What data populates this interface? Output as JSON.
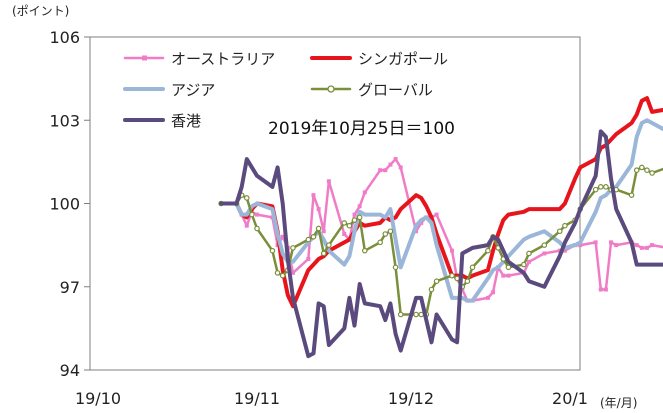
{
  "chart_data": {
    "type": "line",
    "title": "",
    "y_unit_label": "(ポイント)",
    "x_unit_label": "(年/月)",
    "annotation": "2019年10月25日＝100",
    "ylim": [
      94,
      106
    ],
    "y_ticks": [
      94,
      97,
      100,
      103,
      106
    ],
    "y_tick_labels": [
      "94",
      "97",
      "100",
      "103",
      "106"
    ],
    "x_ticks": [
      "19/10",
      "19/11",
      "19/12",
      "20/1"
    ],
    "x_domain": [
      "2019-10-25",
      "2020-01-21"
    ],
    "x_tick_dates": [
      "2019-10-01",
      "2019-11-01",
      "2019-12-01",
      "2020-01-01"
    ],
    "legend_position": "top",
    "grid": false,
    "series": [
      {
        "name": "オーストラリア",
        "color": "#f07cc8",
        "marker": "square",
        "width": 2.5,
        "x": [
          "2019-10-25",
          "2019-10-28",
          "2019-10-29",
          "2019-10-30",
          "2019-10-31",
          "2019-11-01",
          "2019-11-04",
          "2019-11-05",
          "2019-11-06",
          "2019-11-07",
          "2019-11-08",
          "2019-11-11",
          "2019-11-12",
          "2019-11-13",
          "2019-11-14",
          "2019-11-15",
          "2019-11-18",
          "2019-11-19",
          "2019-11-20",
          "2019-11-21",
          "2019-11-22",
          "2019-11-25",
          "2019-11-26",
          "2019-11-27",
          "2019-11-28",
          "2019-11-29",
          "2019-12-02",
          "2019-12-03",
          "2019-12-04",
          "2019-12-05",
          "2019-12-06",
          "2019-12-09",
          "2019-12-10",
          "2019-12-11",
          "2019-12-12",
          "2019-12-13",
          "2019-12-16",
          "2019-12-17",
          "2019-12-18",
          "2019-12-19",
          "2019-12-20",
          "2019-12-23",
          "2019-12-24",
          "2019-12-27",
          "2019-12-30",
          "2019-12-31",
          "2020-01-02",
          "2020-01-03",
          "2020-01-06",
          "2020-01-07",
          "2020-01-08",
          "2020-01-09",
          "2020-01-10",
          "2020-01-13",
          "2020-01-14",
          "2020-01-15",
          "2020-01-16",
          "2020-01-17",
          "2020-01-20",
          "2020-01-21"
        ],
        "y": [
          100.0,
          100.0,
          99.6,
          99.2,
          99.7,
          99.6,
          99.5,
          98.5,
          98.8,
          98.4,
          97.5,
          98.0,
          100.3,
          99.8,
          99.0,
          100.8,
          98.9,
          98.7,
          99.6,
          99.9,
          100.4,
          101.2,
          101.2,
          101.4,
          101.6,
          101.3,
          99.0,
          99.3,
          99.5,
          99.5,
          99.6,
          98.3,
          97.3,
          96.9,
          96.5,
          96.5,
          96.6,
          96.8,
          97.7,
          97.4,
          97.4,
          97.5,
          97.9,
          98.2,
          98.3,
          98.3,
          98.5,
          98.5,
          98.6,
          96.9,
          96.9,
          98.6,
          98.5,
          98.6,
          98.5,
          98.4,
          98.4,
          98.5,
          98.4,
          98.3
        ]
      },
      {
        "name": "シンガポール",
        "color": "#e8141b",
        "marker": "none",
        "width": 4,
        "x": [
          "2019-10-25",
          "2019-10-28",
          "2019-10-29",
          "2019-10-30",
          "2019-10-31",
          "2019-11-01",
          "2019-11-04",
          "2019-11-05",
          "2019-11-06",
          "2019-11-07",
          "2019-11-08",
          "2019-11-11",
          "2019-11-12",
          "2019-11-13",
          "2019-11-14",
          "2019-11-15",
          "2019-11-18",
          "2019-11-19",
          "2019-11-20",
          "2019-11-21",
          "2019-11-22",
          "2019-11-25",
          "2019-11-26",
          "2019-11-27",
          "2019-11-28",
          "2019-11-29",
          "2019-12-02",
          "2019-12-03",
          "2019-12-04",
          "2019-12-05",
          "2019-12-06",
          "2019-12-09",
          "2019-12-10",
          "2019-12-11",
          "2019-12-12",
          "2019-12-13",
          "2019-12-16",
          "2019-12-17",
          "2019-12-18",
          "2019-12-19",
          "2019-12-20",
          "2019-12-23",
          "2019-12-24",
          "2019-12-27",
          "2019-12-30",
          "2019-12-31",
          "2020-01-02",
          "2020-01-03",
          "2020-01-06",
          "2020-01-07",
          "2020-01-08",
          "2020-01-09",
          "2020-01-10",
          "2020-01-13",
          "2020-01-14",
          "2020-01-15",
          "2020-01-16",
          "2020-01-17",
          "2020-01-20",
          "2020-01-21"
        ],
        "y": [
          100.0,
          100.0,
          99.6,
          99.5,
          99.8,
          100.0,
          99.9,
          99.0,
          97.6,
          96.7,
          96.3,
          97.6,
          97.8,
          98.0,
          98.1,
          98.3,
          98.6,
          98.7,
          99.0,
          99.3,
          99.2,
          99.3,
          99.5,
          99.4,
          99.5,
          99.8,
          100.3,
          100.2,
          99.9,
          99.5,
          98.9,
          97.4,
          97.4,
          97.4,
          97.3,
          97.4,
          97.6,
          98.3,
          98.9,
          99.4,
          99.6,
          99.7,
          99.8,
          99.8,
          99.8,
          100.0,
          100.9,
          101.3,
          101.6,
          102.0,
          102.1,
          102.3,
          102.5,
          102.9,
          103.2,
          103.7,
          103.8,
          103.3,
          103.4,
          103.6
        ]
      },
      {
        "name": "アジア",
        "color": "#9ab6d8",
        "marker": "none",
        "width": 4,
        "x": [
          "2019-10-25",
          "2019-10-28",
          "2019-10-29",
          "2019-10-30",
          "2019-10-31",
          "2019-11-01",
          "2019-11-04",
          "2019-11-05",
          "2019-11-06",
          "2019-11-07",
          "2019-11-08",
          "2019-11-11",
          "2019-11-12",
          "2019-11-13",
          "2019-11-14",
          "2019-11-15",
          "2019-11-18",
          "2019-11-19",
          "2019-11-20",
          "2019-11-21",
          "2019-11-22",
          "2019-11-25",
          "2019-11-26",
          "2019-11-27",
          "2019-11-28",
          "2019-11-29",
          "2019-12-02",
          "2019-12-03",
          "2019-12-04",
          "2019-12-05",
          "2019-12-06",
          "2019-12-09",
          "2019-12-10",
          "2019-12-11",
          "2019-12-12",
          "2019-12-13",
          "2019-12-16",
          "2019-12-17",
          "2019-12-18",
          "2019-12-19",
          "2019-12-20",
          "2019-12-23",
          "2019-12-24",
          "2019-12-27",
          "2019-12-30",
          "2019-12-31",
          "2020-01-02",
          "2020-01-03",
          "2020-01-06",
          "2020-01-07",
          "2020-01-08",
          "2020-01-09",
          "2020-01-10",
          "2020-01-13",
          "2020-01-14",
          "2020-01-15",
          "2020-01-16",
          "2020-01-17",
          "2020-01-20",
          "2020-01-21"
        ],
        "y": [
          100.0,
          100.0,
          99.6,
          99.6,
          99.9,
          100.0,
          99.8,
          98.9,
          98.2,
          97.9,
          97.9,
          98.6,
          98.8,
          99.0,
          98.7,
          98.3,
          97.8,
          98.1,
          99.0,
          99.7,
          99.6,
          99.6,
          99.5,
          99.8,
          98.7,
          97.7,
          99.2,
          99.4,
          99.5,
          99.3,
          98.5,
          96.6,
          96.6,
          96.6,
          96.5,
          96.5,
          97.3,
          97.6,
          97.7,
          97.9,
          98.1,
          98.7,
          98.8,
          99.0,
          98.6,
          98.4,
          98.5,
          98.6,
          99.7,
          100.2,
          100.3,
          100.5,
          100.6,
          101.4,
          102.4,
          102.9,
          103.0,
          102.9,
          102.6,
          102.8
        ]
      },
      {
        "name": "グローバル",
        "color": "#7a8f3a",
        "marker": "circle",
        "width": 2.5,
        "x": [
          "2019-10-25",
          "2019-10-28",
          "2019-10-29",
          "2019-10-30",
          "2019-10-31",
          "2019-11-01",
          "2019-11-04",
          "2019-11-05",
          "2019-11-06",
          "2019-11-07",
          "2019-11-08",
          "2019-11-11",
          "2019-11-12",
          "2019-11-13",
          "2019-11-14",
          "2019-11-15",
          "2019-11-18",
          "2019-11-19",
          "2019-11-20",
          "2019-11-21",
          "2019-11-22",
          "2019-11-25",
          "2019-11-26",
          "2019-11-27",
          "2019-11-28",
          "2019-11-29",
          "2019-12-02",
          "2019-12-03",
          "2019-12-04",
          "2019-12-05",
          "2019-12-06",
          "2019-12-09",
          "2019-12-10",
          "2019-12-11",
          "2019-12-12",
          "2019-12-13",
          "2019-12-16",
          "2019-12-17",
          "2019-12-18",
          "2019-12-19",
          "2019-12-20",
          "2019-12-23",
          "2019-12-24",
          "2019-12-27",
          "2019-12-30",
          "2019-12-31",
          "2020-01-02",
          "2020-01-03",
          "2020-01-06",
          "2020-01-07",
          "2020-01-08",
          "2020-01-09",
          "2020-01-10",
          "2020-01-13",
          "2020-01-14",
          "2020-01-15",
          "2020-01-16",
          "2020-01-17",
          "2020-01-20",
          "2020-01-21"
        ],
        "y": [
          100.0,
          100.0,
          100.3,
          100.2,
          99.6,
          99.1,
          98.3,
          97.5,
          97.4,
          97.6,
          98.4,
          98.7,
          98.8,
          99.1,
          98.2,
          98.5,
          99.3,
          99.2,
          99.4,
          99.5,
          98.3,
          98.6,
          98.9,
          99.0,
          97.7,
          96.0,
          96.0,
          96.0,
          96.0,
          96.9,
          97.2,
          97.4,
          97.3,
          97.0,
          97.2,
          97.7,
          98.3,
          98.8,
          98.4,
          98.0,
          97.7,
          97.8,
          98.2,
          98.5,
          99.0,
          99.2,
          99.4,
          99.8,
          100.5,
          100.6,
          100.6,
          100.5,
          100.5,
          100.3,
          101.2,
          101.3,
          101.2,
          101.1,
          101.3,
          101.2
        ]
      },
      {
        "name": "香港",
        "color": "#5b4a7e",
        "marker": "none",
        "width": 4,
        "x": [
          "2019-10-25",
          "2019-10-28",
          "2019-10-29",
          "2019-10-30",
          "2019-10-31",
          "2019-11-01",
          "2019-11-04",
          "2019-11-05",
          "2019-11-06",
          "2019-11-07",
          "2019-11-08",
          "2019-11-11",
          "2019-11-12",
          "2019-11-13",
          "2019-11-14",
          "2019-11-15",
          "2019-11-18",
          "2019-11-19",
          "2019-11-20",
          "2019-11-21",
          "2019-11-22",
          "2019-11-25",
          "2019-11-26",
          "2019-11-27",
          "2019-11-28",
          "2019-11-29",
          "2019-12-02",
          "2019-12-03",
          "2019-12-04",
          "2019-12-05",
          "2019-12-06",
          "2019-12-09",
          "2019-12-10",
          "2019-12-11",
          "2019-12-12",
          "2019-12-13",
          "2019-12-16",
          "2019-12-17",
          "2019-12-18",
          "2019-12-19",
          "2019-12-20",
          "2019-12-23",
          "2019-12-24",
          "2019-12-27",
          "2019-12-30",
          "2019-12-31",
          "2020-01-02",
          "2020-01-03",
          "2020-01-06",
          "2020-01-07",
          "2020-01-08",
          "2020-01-09",
          "2020-01-10",
          "2020-01-13",
          "2020-01-14",
          "2020-01-15",
          "2020-01-16",
          "2020-01-17",
          "2020-01-20",
          "2020-01-21"
        ],
        "y": [
          100.0,
          100.0,
          100.6,
          101.6,
          101.3,
          101.0,
          100.6,
          101.3,
          100.0,
          98.0,
          96.6,
          94.5,
          94.6,
          96.4,
          96.3,
          94.9,
          95.5,
          96.6,
          95.6,
          97.1,
          96.4,
          96.3,
          95.8,
          96.4,
          95.3,
          94.7,
          96.6,
          96.6,
          95.8,
          95.0,
          96.0,
          95.1,
          95.0,
          98.2,
          98.3,
          98.4,
          98.5,
          98.8,
          98.7,
          98.3,
          97.9,
          97.5,
          97.2,
          97.0,
          98.1,
          98.6,
          99.3,
          99.8,
          101.0,
          102.6,
          102.4,
          100.9,
          99.8,
          98.6,
          97.8,
          97.8,
          97.8,
          97.8,
          97.8,
          97.8
        ]
      }
    ]
  }
}
